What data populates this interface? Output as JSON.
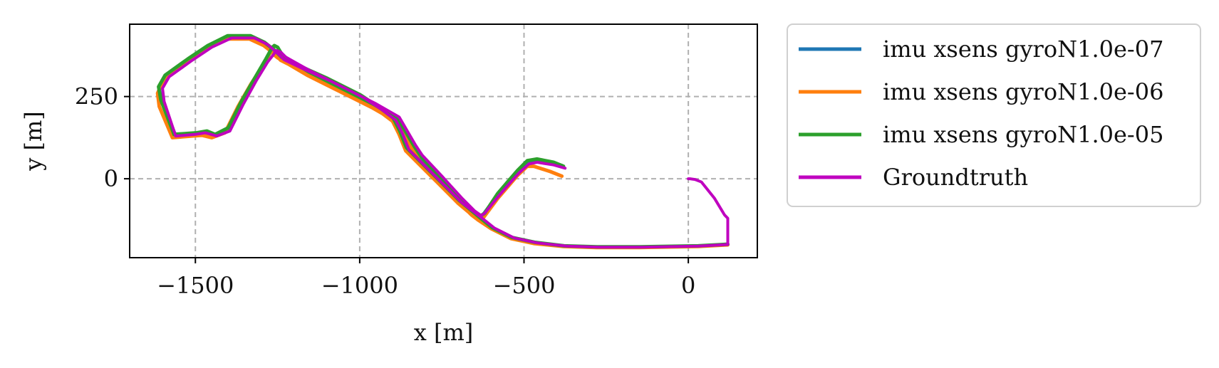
{
  "chart_data": {
    "type": "line",
    "title": "",
    "xlabel": "x [m]",
    "ylabel": "y [m]",
    "xlim": [
      -1700,
      210
    ],
    "ylim": [
      -240,
      470
    ],
    "xticks": [
      -1500,
      -1000,
      -500,
      0
    ],
    "xtick_labels": [
      "−1500",
      "−1000",
      "−500",
      "0"
    ],
    "yticks": [
      0,
      250
    ],
    "ytick_labels": [
      "0",
      "250"
    ],
    "grid": true,
    "legend_position": "outside-right",
    "series": [
      {
        "name": "imu xsens gyroN1.0e-07",
        "color": "#1f77b4",
        "x": [
          -385,
          -420,
          -470,
          -490,
          -520,
          -550,
          -580,
          -625,
          -640,
          -660,
          -700,
          -760,
          -820,
          -840,
          -890,
          -960,
          -1060,
          -1160,
          -1240,
          -1245,
          -1260,
          -1265,
          -1270,
          -1285,
          -1320,
          -1360,
          -1400,
          -1440,
          -1460,
          -1490,
          -1560,
          -1600,
          -1610,
          -1590,
          -1520,
          -1460,
          -1400,
          -1330,
          -1290,
          -1260,
          -1250,
          -1240,
          -1190,
          -1100,
          -1000,
          -940,
          -900,
          -880,
          -860,
          -820,
          -770,
          -700,
          -640,
          -600,
          -540,
          -470,
          -380,
          -280,
          -150,
          30,
          120
        ],
        "y": [
          40,
          48,
          55,
          50,
          20,
          -15,
          -50,
          -110,
          -120,
          -105,
          -65,
          0,
          65,
          95,
          180,
          220,
          270,
          320,
          370,
          375,
          385,
          395,
          388,
          360,
          300,
          230,
          150,
          130,
          140,
          135,
          130,
          230,
          270,
          310,
          360,
          400,
          430,
          430,
          410,
          385,
          375,
          365,
          340,
          300,
          250,
          210,
          180,
          140,
          90,
          50,
          0,
          -70,
          -120,
          -150,
          -180,
          -195,
          -205,
          -208,
          -208,
          -205,
          -200
        ]
      },
      {
        "name": "imu xsens gyroN1.0e-06",
        "color": "#ff7f0e",
        "x": [
          -385,
          -420,
          -470,
          -490,
          -520,
          -550,
          -580,
          -625,
          -640,
          -660,
          -700,
          -760,
          -820,
          -840,
          -890,
          -960,
          -1060,
          -1160,
          -1240,
          -1250,
          -1262,
          -1268,
          -1275,
          -1290,
          -1330,
          -1370,
          -1410,
          -1450,
          -1480,
          -1510,
          -1570,
          -1610,
          -1615,
          -1595,
          -1525,
          -1465,
          -1405,
          -1335,
          -1292,
          -1260,
          -1250,
          -1240,
          -1190,
          -1100,
          -1000,
          -940,
          -900,
          -880,
          -860,
          -820,
          -770,
          -700,
          -640,
          -600,
          -540,
          -470,
          -380,
          -280,
          -150,
          30,
          120
        ],
        "y": [
          8,
          22,
          38,
          38,
          10,
          -25,
          -60,
          -120,
          -125,
          -110,
          -70,
          -5,
          58,
          90,
          175,
          215,
          265,
          315,
          362,
          368,
          378,
          388,
          380,
          350,
          290,
          220,
          140,
          125,
          132,
          130,
          125,
          220,
          260,
          305,
          355,
          395,
          425,
          425,
          405,
          380,
          370,
          360,
          335,
          295,
          245,
          205,
          175,
          135,
          85,
          45,
          -5,
          -75,
          -125,
          -152,
          -182,
          -197,
          -206,
          -209,
          -209,
          -206,
          -201
        ]
      },
      {
        "name": "imu xsens gyroN1.0e-05",
        "color": "#2ca02c",
        "x": [
          -380,
          -410,
          -460,
          -490,
          -520,
          -550,
          -580,
          -620,
          -635,
          -655,
          -695,
          -755,
          -815,
          -835,
          -885,
          -955,
          -1055,
          -1155,
          -1235,
          -1250,
          -1260,
          -1265,
          -1270,
          -1285,
          -1320,
          -1360,
          -1400,
          -1440,
          -1465,
          -1495,
          -1565,
          -1605,
          -1612,
          -1592,
          -1522,
          -1462,
          -1402,
          -1332,
          -1290,
          -1258,
          -1248,
          -1238,
          -1188,
          -1098,
          -998,
          -938,
          -898,
          -878,
          -858,
          -818,
          -768,
          -698,
          -638,
          -598,
          -538,
          -468,
          -378,
          -278,
          -148,
          30,
          120
        ],
        "y": [
          38,
          50,
          60,
          55,
          25,
          -10,
          -45,
          -105,
          -115,
          -100,
          -60,
          5,
          70,
          100,
          185,
          225,
          275,
          325,
          375,
          400,
          405,
          400,
          392,
          365,
          305,
          235,
          155,
          135,
          145,
          140,
          135,
          240,
          280,
          315,
          365,
          405,
          435,
          435,
          415,
          390,
          380,
          370,
          345,
          305,
          255,
          215,
          185,
          145,
          95,
          55,
          5,
          -65,
          -115,
          -148,
          -178,
          -193,
          -204,
          -207,
          -207,
          -204,
          -199
        ]
      },
      {
        "name": "Groundtruth",
        "color": "#bf00bf",
        "x": [
          -375,
          -410,
          -460,
          -485,
          -515,
          -545,
          -575,
          -620,
          -630,
          -650,
          -690,
          -750,
          -810,
          -830,
          -880,
          -950,
          -1050,
          -1150,
          -1225,
          -1240,
          -1252,
          -1258,
          -1262,
          -1280,
          -1315,
          -1355,
          -1395,
          -1435,
          -1470,
          -1500,
          -1560,
          -1595,
          -1600,
          -1580,
          -1510,
          -1450,
          -1390,
          -1320,
          -1280,
          -1250,
          -1240,
          -1230,
          -1180,
          -1090,
          -990,
          -930,
          -890,
          -870,
          -850,
          -810,
          -760,
          -690,
          -630,
          -590,
          -530,
          -460,
          -370,
          -270,
          -140,
          30,
          120,
          120,
          110,
          80,
          40,
          20,
          5,
          0
        ],
        "y": [
          32,
          42,
          50,
          45,
          18,
          -15,
          -50,
          -105,
          -112,
          -98,
          -58,
          8,
          72,
          102,
          188,
          228,
          278,
          328,
          370,
          385,
          390,
          385,
          378,
          355,
          298,
          225,
          145,
          130,
          140,
          135,
          130,
          235,
          275,
          310,
          360,
          400,
          428,
          428,
          408,
          382,
          372,
          362,
          338,
          298,
          248,
          208,
          178,
          138,
          88,
          48,
          -2,
          -72,
          -118,
          -150,
          -180,
          -195,
          -205,
          -208,
          -208,
          -205,
          -200,
          -120,
          -110,
          -60,
          -10,
          -2,
          0,
          0
        ]
      }
    ]
  }
}
